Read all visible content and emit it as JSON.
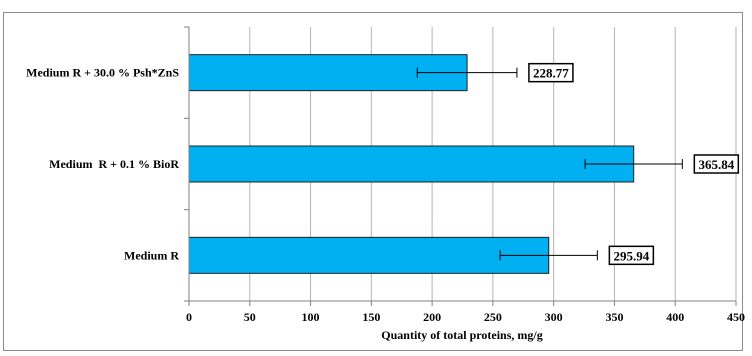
{
  "chart_data": {
    "type": "bar",
    "orientation": "horizontal",
    "categories": [
      "Medium R + 30.0 % Psh*ZnS",
      "Medium  R + 0.1 % BioR",
      "Medium R"
    ],
    "values": [
      228.77,
      365.84,
      295.94
    ],
    "error_minus": [
      41,
      40,
      40
    ],
    "error_plus": [
      41,
      40,
      40
    ],
    "data_labels": [
      "228.77",
      "365.84",
      "295.94"
    ],
    "xlabel": "Quantity of total proteins, mg/g",
    "ylabel": "",
    "xlim": [
      0,
      450
    ],
    "xticks": [
      0,
      50,
      100,
      150,
      200,
      250,
      300,
      350,
      400,
      450
    ],
    "xtick_labels": [
      "0",
      "50",
      "100",
      "150",
      "200",
      "250",
      "300",
      "350",
      "400",
      "450"
    ],
    "grid": "vertical",
    "legend": "none",
    "colors": {
      "bar": "#00b0f0",
      "bar_edge": "#1f1f1f",
      "grid": "#b3b3b3",
      "axis": "#808080"
    }
  }
}
